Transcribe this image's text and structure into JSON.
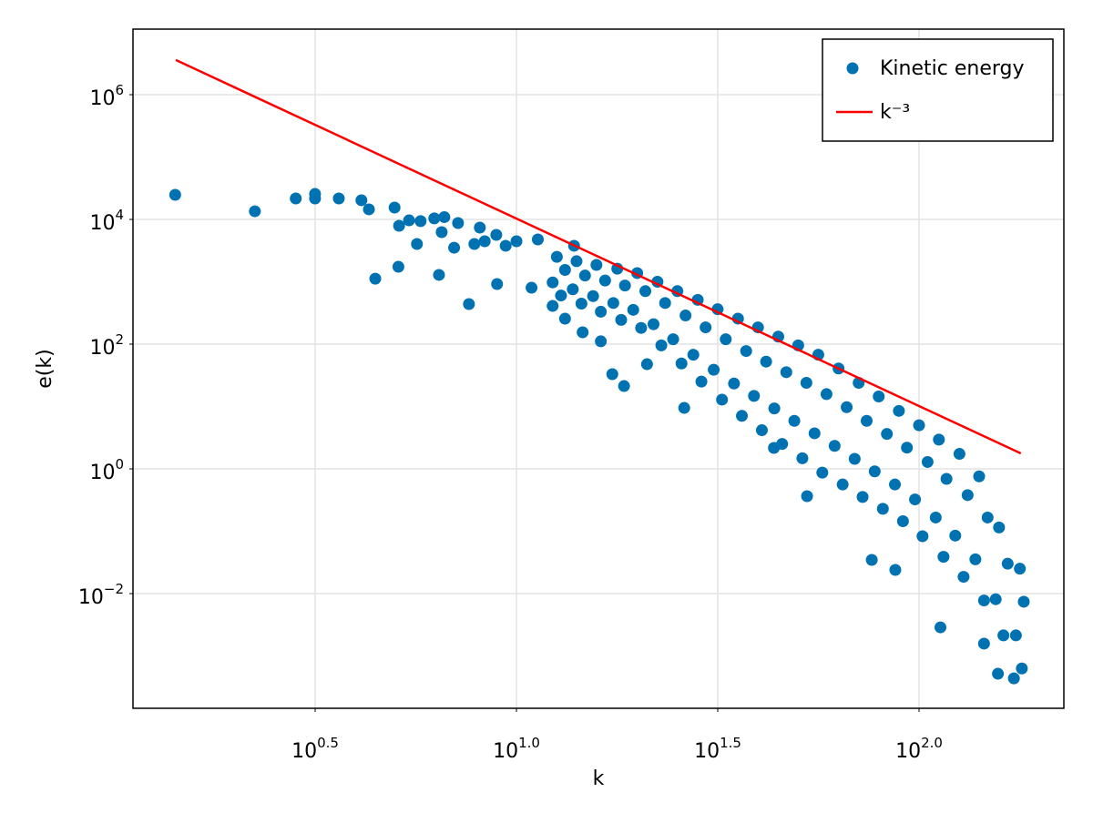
{
  "chart_data": {
    "type": "scatter",
    "x_label": "k",
    "y_label": "e(k)",
    "xscale": "log",
    "yscale": "log",
    "grid": true,
    "legend": "top-right",
    "xlim": [
      1.1155,
      228.9
    ],
    "ylim": [
      0.000145,
      11250000
    ],
    "xticks": [
      {
        "value": 3.16228,
        "label": "10",
        "exponent": "0.5"
      },
      {
        "value": 10,
        "label": "10",
        "exponent": "1.0"
      },
      {
        "value": 31.6228,
        "label": "10",
        "exponent": "1.5"
      },
      {
        "value": 100,
        "label": "10",
        "exponent": "2.0"
      }
    ],
    "yticks": [
      {
        "value": 0.01,
        "label": "10",
        "exponent": "−2"
      },
      {
        "value": 1,
        "label": "10",
        "exponent": "0"
      },
      {
        "value": 100,
        "label": "10",
        "exponent": "2"
      },
      {
        "value": 10000,
        "label": "10",
        "exponent": "4"
      },
      {
        "value": 1000000,
        "label": "10",
        "exponent": "6"
      }
    ],
    "series": [
      {
        "name": "Kinetic energy",
        "type": "scatter",
        "color": "#0072b2",
        "x": [
          1.42,
          2.24,
          2.83,
          3.16,
          3.16,
          3.62,
          4.12,
          4.3,
          4.46,
          4.98,
          5.11,
          5.09,
          5.41,
          5.78,
          5.66,
          6.25,
          6.42,
          6.62,
          6.52,
          7.16,
          7.0,
          7.62,
          8.11,
          7.86,
          8.34,
          8.91,
          9.4,
          8.95,
          10,
          10.9,
          11.3,
          12.3,
          13.2,
          13.9,
          14.6,
          16.2,
          17.3,
          18.5,
          21.1,
          26.1,
          43.6,
          52.7,
          76.3,
          87.3,
          113,
          157,
          172,
          145,
          12.6,
          13.2,
          12.3,
          12.9,
          14.1,
          14.8,
          13.8,
          14.5,
          15.8,
          16.6,
          15.5,
          16.2,
          17.8,
          18.6,
          17.4,
          18.2,
          19.95,
          20.9,
          19.5,
          20.4,
          22.4,
          23.4,
          21.9,
          22.9,
          25.1,
          26.3,
          24.5,
          25.7,
          28.2,
          29.5,
          27.5,
          28.8,
          31.6,
          33.1,
          30.9,
          32.4,
          35.5,
          37.2,
          34.7,
          36.3,
          39.8,
          41.7,
          38.9,
          40.7,
          44.7,
          46.8,
          43.7,
          45.7,
          50.1,
          52.5,
          49.0,
          51.3,
          56.2,
          58.9,
          55.0,
          57.5,
          63.1,
          66.1,
          61.7,
          64.6,
          70.8,
          74.1,
          69.2,
          72.4,
          79.4,
          83.2,
          77.6,
          81.3,
          89.1,
          93.3,
          87.1,
          91.2,
          100,
          105,
          97.7,
          102,
          112,
          117,
          110,
          115,
          126,
          132,
          123,
          129,
          141,
          148,
          138,
          145,
          158,
          166,
          155,
          162,
          178,
          182,
          174,
          180
        ],
        "values": [
          24800,
          13500,
          21700,
          25600,
          21700,
          21700,
          20300,
          14500,
          1120,
          15500,
          7900,
          1740,
          9660,
          9400,
          4040,
          10400,
          1290,
          10900,
          6250,
          8750,
          3520,
          439,
          7400,
          4040,
          4470,
          5650,
          3780,
          920,
          4470,
          803,
          4780,
          410,
          256,
          3780,
          155,
          111,
          33.0,
          21.3,
          47.7,
          9.5,
          2.17,
          0.365,
          0.0347,
          0.024,
          0.00288,
          0.000519,
          0.000438,
          0.00158,
          2512,
          1549,
          977,
          603,
          2138,
          1259,
          759,
          447,
          1862,
          1047,
          589,
          331,
          1622,
          871,
          457,
          245,
          1380,
          708,
          355,
          182,
          1000,
          457,
          209,
          95.5,
          708,
          288,
          120,
          49.0,
          513,
          186,
          67.6,
          25.1,
          363,
          120,
          38.9,
          12.9,
          257,
          77.6,
          23.4,
          7.08,
          186,
          52.5,
          14.8,
          4.17,
          132,
          35.5,
          9.33,
          2.51,
          95.5,
          24.0,
          5.89,
          1.48,
          67.6,
          15.8,
          3.72,
          0.871,
          40.7,
          9.77,
          2.34,
          0.562,
          24.0,
          5.89,
          1.45,
          0.355,
          14.5,
          3.63,
          0.912,
          0.229,
          8.51,
          2.19,
          0.562,
          0.145,
          5.01,
          1.29,
          0.324,
          0.0832,
          2.95,
          0.692,
          0.166,
          0.0389,
          1.74,
          0.38,
          0.0851,
          0.0186,
          0.759,
          0.166,
          0.0355,
          0.00776,
          0.115,
          0.0302,
          0.00813,
          0.00214,
          0.0251,
          0.00741,
          0.00214,
          0.000631
        ]
      },
      {
        "name": "k⁻³",
        "type": "line",
        "color": "#ff0000",
        "x": [
          1.425,
          179
        ],
        "values": [
          3600000,
          1.77
        ]
      }
    ]
  }
}
